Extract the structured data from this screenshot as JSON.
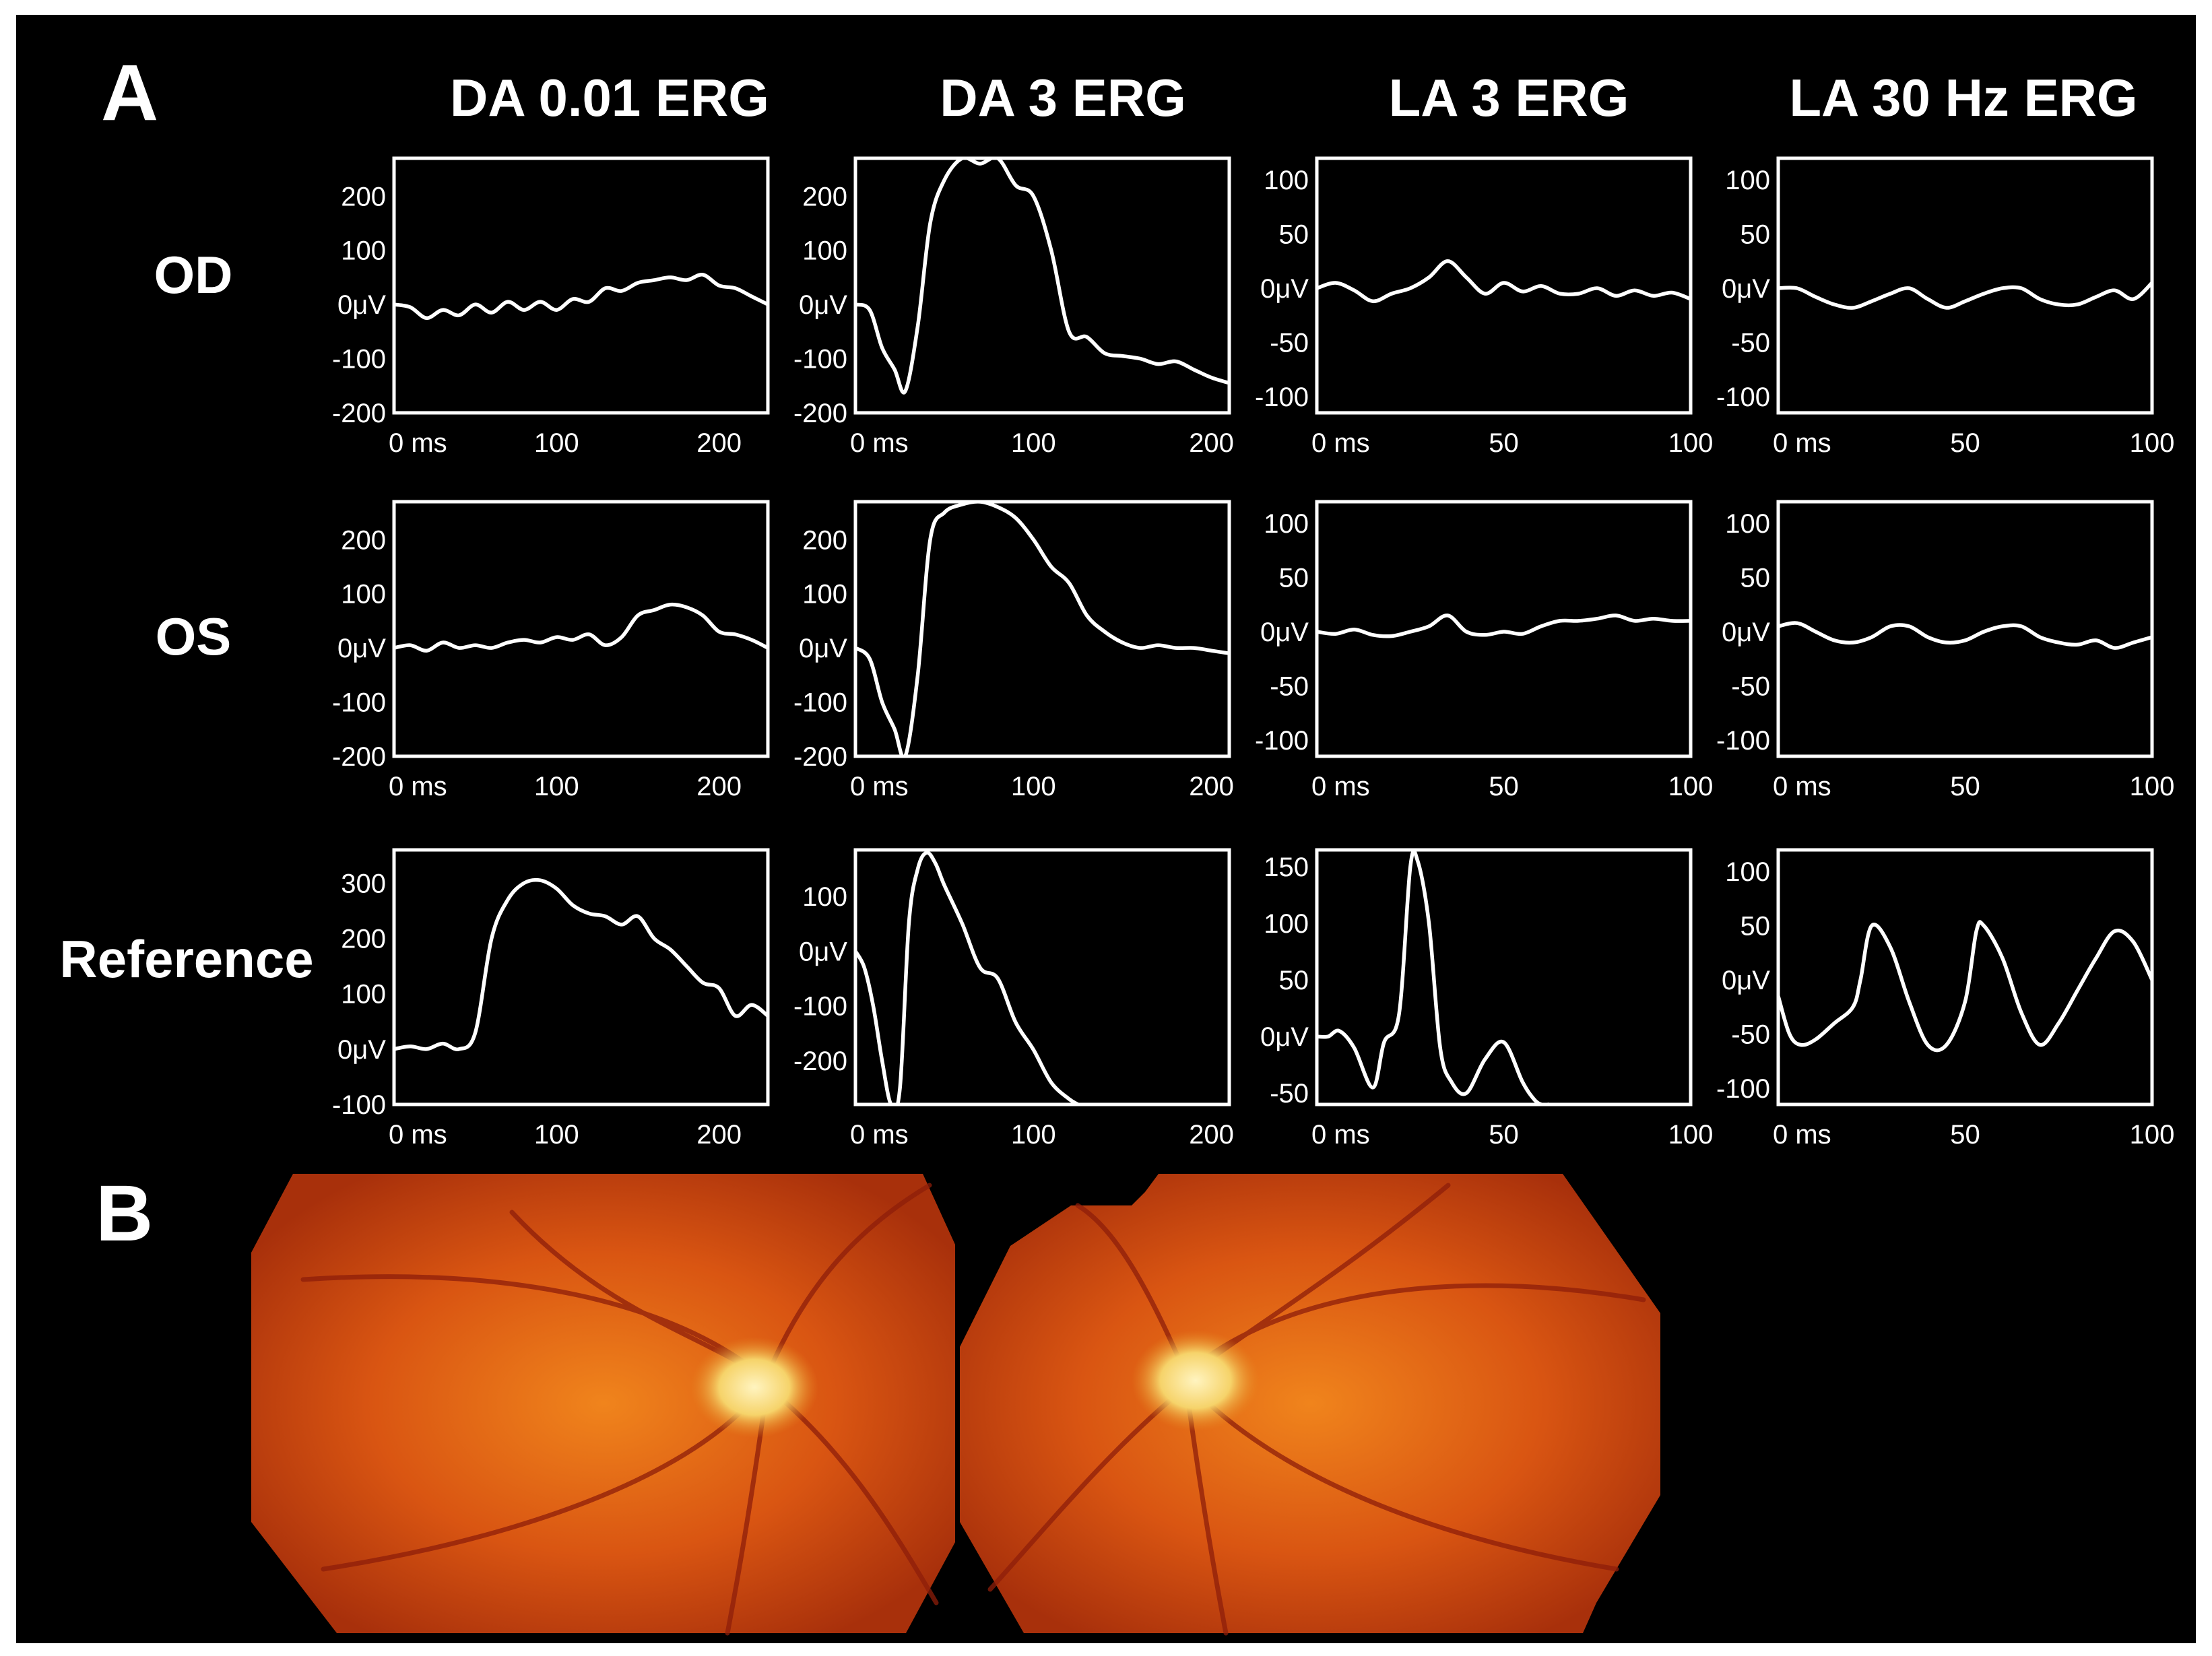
{
  "figure": {
    "panel_a_label": "A",
    "panel_b_label": "B",
    "column_titles": [
      "DA 0.01 ERG",
      "DA 3 ERG",
      "LA 3 ERG",
      "LA 30 Hz ERG"
    ],
    "row_labels": [
      "OD",
      "OS",
      "Reference"
    ],
    "colors": {
      "background": "#000000",
      "trace": "#ffffff",
      "fundus": "#d2460f"
    }
  },
  "chart_data": [
    {
      "type": "line",
      "row": "OD",
      "column": "DA 0.01 ERG",
      "xlim": [
        0,
        230
      ],
      "ylim": [
        -200,
        270
      ],
      "x_ticks": [
        "0 ms",
        "100",
        "200"
      ],
      "x_tick_values": [
        0,
        100,
        200
      ],
      "y_ticks": [
        "200",
        "100",
        "0μV",
        "-100",
        "-200"
      ],
      "y_tick_values": [
        200,
        100,
        0,
        -100,
        -200
      ],
      "series": [
        {
          "x": [
            0,
            10,
            20,
            30,
            40,
            50,
            60,
            70,
            80,
            90,
            100,
            110,
            120,
            130,
            140,
            150,
            160,
            170,
            180,
            190,
            200,
            210,
            220,
            230
          ],
          "y": [
            0,
            -5,
            -25,
            -10,
            -20,
            0,
            -15,
            5,
            -10,
            5,
            -10,
            10,
            5,
            30,
            25,
            40,
            45,
            50,
            45,
            55,
            35,
            30,
            15,
            0
          ]
        }
      ]
    },
    {
      "type": "line",
      "row": "OD",
      "column": "DA 3 ERG",
      "xlim": [
        0,
        210
      ],
      "ylim": [
        -200,
        270
      ],
      "x_ticks": [
        "0 ms",
        "100",
        "200"
      ],
      "x_tick_values": [
        0,
        100,
        200
      ],
      "y_ticks": [
        "200",
        "100",
        "0μV",
        "-100",
        "-200"
      ],
      "y_tick_values": [
        200,
        100,
        0,
        -100,
        -200
      ],
      "series": [
        {
          "x": [
            0,
            8,
            15,
            22,
            28,
            35,
            42,
            50,
            60,
            70,
            80,
            90,
            100,
            110,
            120,
            130,
            140,
            150,
            160,
            170,
            180,
            190,
            200,
            210
          ],
          "y": [
            0,
            -10,
            -80,
            -120,
            -160,
            -40,
            150,
            230,
            270,
            260,
            270,
            220,
            200,
            100,
            -50,
            -60,
            -90,
            -95,
            -100,
            -110,
            -105,
            -120,
            -135,
            -145
          ]
        }
      ]
    },
    {
      "type": "line",
      "row": "OD",
      "column": "LA 3 ERG",
      "xlim": [
        0,
        100
      ],
      "ylim": [
        -115,
        120
      ],
      "x_ticks": [
        "0 ms",
        "50",
        "100"
      ],
      "x_tick_values": [
        0,
        50,
        100
      ],
      "y_ticks": [
        "100",
        "50",
        "0μV",
        "-50",
        "-100"
      ],
      "y_tick_values": [
        100,
        50,
        0,
        -50,
        -100
      ],
      "series": [
        {
          "x": [
            0,
            5,
            10,
            15,
            20,
            25,
            30,
            35,
            40,
            45,
            50,
            55,
            60,
            65,
            70,
            75,
            80,
            85,
            90,
            95,
            100
          ],
          "y": [
            0,
            5,
            -2,
            -12,
            -5,
            0,
            10,
            25,
            10,
            -5,
            5,
            -3,
            2,
            -5,
            -5,
            0,
            -7,
            -2,
            -7,
            -4,
            -10
          ]
        }
      ]
    },
    {
      "type": "line",
      "row": "OD",
      "column": "LA 30 Hz ERG",
      "xlim": [
        0,
        100
      ],
      "ylim": [
        -115,
        120
      ],
      "x_ticks": [
        "0 ms",
        "50",
        "100"
      ],
      "x_tick_values": [
        0,
        50,
        100
      ],
      "y_ticks": [
        "100",
        "50",
        "0μV",
        "-50",
        "-100"
      ],
      "y_tick_values": [
        100,
        50,
        0,
        -50,
        -100
      ],
      "series": [
        {
          "x": [
            0,
            5,
            10,
            15,
            20,
            25,
            30,
            35,
            40,
            45,
            50,
            55,
            60,
            65,
            70,
            75,
            80,
            85,
            90,
            95,
            100
          ],
          "y": [
            0,
            0,
            -8,
            -15,
            -18,
            -12,
            -5,
            0,
            -10,
            -18,
            -12,
            -5,
            0,
            0,
            -10,
            -15,
            -15,
            -8,
            -2,
            -10,
            5
          ]
        }
      ]
    },
    {
      "type": "line",
      "row": "OS",
      "column": "DA 0.01 ERG",
      "xlim": [
        0,
        230
      ],
      "ylim": [
        -200,
        270
      ],
      "x_ticks": [
        "0 ms",
        "100",
        "200"
      ],
      "x_tick_values": [
        0,
        100,
        200
      ],
      "y_ticks": [
        "200",
        "100",
        "0μV",
        "-100",
        "-200"
      ],
      "y_tick_values": [
        200,
        100,
        0,
        -100,
        -200
      ],
      "series": [
        {
          "x": [
            0,
            10,
            20,
            30,
            40,
            50,
            60,
            70,
            80,
            90,
            100,
            110,
            120,
            130,
            140,
            150,
            160,
            170,
            180,
            190,
            200,
            210,
            220,
            230
          ],
          "y": [
            0,
            5,
            -5,
            10,
            0,
            5,
            0,
            10,
            15,
            10,
            20,
            15,
            25,
            5,
            20,
            60,
            70,
            80,
            75,
            60,
            30,
            25,
            15,
            0
          ]
        }
      ]
    },
    {
      "type": "line",
      "row": "OS",
      "column": "DA 3 ERG",
      "xlim": [
        0,
        210
      ],
      "ylim": [
        -200,
        270
      ],
      "x_ticks": [
        "0 ms",
        "100",
        "200"
      ],
      "x_tick_values": [
        0,
        100,
        200
      ],
      "y_ticks": [
        "200",
        "100",
        "0μV",
        "-100",
        "-200"
      ],
      "y_tick_values": [
        200,
        100,
        0,
        -100,
        -200
      ],
      "series": [
        {
          "x": [
            0,
            8,
            15,
            22,
            28,
            35,
            42,
            50,
            60,
            70,
            80,
            90,
            100,
            110,
            120,
            130,
            140,
            150,
            160,
            170,
            180,
            190,
            200,
            210
          ],
          "y": [
            0,
            -20,
            -100,
            -150,
            -200,
            -50,
            200,
            250,
            265,
            270,
            260,
            240,
            200,
            150,
            120,
            60,
            30,
            10,
            0,
            5,
            0,
            0,
            -5,
            -10
          ]
        }
      ]
    },
    {
      "type": "line",
      "row": "OS",
      "column": "LA 3 ERG",
      "xlim": [
        0,
        100
      ],
      "ylim": [
        -115,
        120
      ],
      "x_ticks": [
        "0 ms",
        "50",
        "100"
      ],
      "x_tick_values": [
        0,
        50,
        100
      ],
      "y_ticks": [
        "100",
        "50",
        "0μV",
        "-50",
        "-100"
      ],
      "y_tick_values": [
        100,
        50,
        0,
        -50,
        -100
      ],
      "series": [
        {
          "x": [
            0,
            5,
            10,
            15,
            20,
            25,
            30,
            35,
            40,
            45,
            50,
            55,
            60,
            65,
            70,
            75,
            80,
            85,
            90,
            95,
            100
          ],
          "y": [
            0,
            -2,
            2,
            -3,
            -4,
            0,
            5,
            15,
            0,
            -3,
            0,
            -2,
            5,
            10,
            10,
            12,
            15,
            10,
            12,
            10,
            10
          ]
        }
      ]
    },
    {
      "type": "line",
      "row": "OS",
      "column": "LA 30 Hz ERG",
      "xlim": [
        0,
        100
      ],
      "ylim": [
        -115,
        120
      ],
      "x_ticks": [
        "0 ms",
        "50",
        "100"
      ],
      "x_tick_values": [
        0,
        50,
        100
      ],
      "y_ticks": [
        "100",
        "50",
        "0μV",
        "-50",
        "-100"
      ],
      "y_tick_values": [
        100,
        50,
        0,
        -50,
        -100
      ],
      "series": [
        {
          "x": [
            0,
            5,
            10,
            15,
            20,
            25,
            30,
            35,
            40,
            45,
            50,
            55,
            60,
            65,
            70,
            75,
            80,
            85,
            90,
            95,
            100
          ],
          "y": [
            5,
            8,
            0,
            -8,
            -10,
            -5,
            5,
            5,
            -5,
            -10,
            -8,
            0,
            5,
            5,
            -5,
            -10,
            -12,
            -8,
            -15,
            -10,
            -5
          ]
        }
      ]
    },
    {
      "type": "line",
      "row": "Reference",
      "column": "DA 0.01 ERG",
      "xlim": [
        0,
        230
      ],
      "ylim": [
        -100,
        360
      ],
      "x_ticks": [
        "0 ms",
        "100",
        "200"
      ],
      "x_tick_values": [
        0,
        100,
        200
      ],
      "y_ticks": [
        "300",
        "200",
        "100",
        "0μV",
        "-100"
      ],
      "y_tick_values": [
        300,
        200,
        100,
        0,
        -100
      ],
      "series": [
        {
          "x": [
            0,
            10,
            20,
            30,
            40,
            50,
            60,
            70,
            80,
            90,
            100,
            110,
            120,
            130,
            140,
            150,
            160,
            170,
            180,
            190,
            200,
            210,
            220,
            230
          ],
          "y": [
            0,
            5,
            0,
            10,
            0,
            30,
            200,
            270,
            300,
            305,
            290,
            260,
            245,
            240,
            225,
            240,
            200,
            180,
            150,
            120,
            110,
            60,
            80,
            60
          ]
        }
      ]
    },
    {
      "type": "line",
      "row": "Reference",
      "column": "DA 3 ERG",
      "xlim": [
        0,
        210
      ],
      "ylim": [
        -280,
        185
      ],
      "x_ticks": [
        "0 ms",
        "100",
        "200"
      ],
      "x_tick_values": [
        0,
        100,
        200
      ],
      "y_ticks": [
        "100",
        "0μV",
        "-100",
        "-200"
      ],
      "y_tick_values": [
        100,
        0,
        -100,
        -200
      ],
      "series": [
        {
          "x": [
            0,
            5,
            10,
            15,
            20,
            25,
            30,
            35,
            40,
            45,
            50,
            60,
            70,
            80,
            90,
            100,
            110,
            120,
            125
          ],
          "y": [
            0,
            -30,
            -100,
            -200,
            -280,
            -250,
            50,
            150,
            180,
            160,
            120,
            50,
            -30,
            -50,
            -130,
            -180,
            -240,
            -270,
            -280
          ]
        }
      ]
    },
    {
      "type": "line",
      "row": "Reference",
      "column": "LA 3 ERG",
      "xlim": [
        0,
        100
      ],
      "ylim": [
        -60,
        165
      ],
      "x_ticks": [
        "0 ms",
        "50",
        "100"
      ],
      "x_tick_values": [
        0,
        50,
        100
      ],
      "y_ticks": [
        "150",
        "100",
        "50",
        "0μV",
        "-50"
      ],
      "y_tick_values": [
        150,
        100,
        50,
        0,
        -50
      ],
      "series": [
        {
          "x": [
            0,
            3,
            6,
            10,
            15,
            18,
            22,
            25,
            27,
            30,
            33,
            36,
            40,
            45,
            50,
            55,
            58,
            60,
            62
          ],
          "y": [
            0,
            0,
            5,
            -10,
            -45,
            -5,
            20,
            150,
            155,
            100,
            -10,
            -40,
            -50,
            -20,
            -5,
            -40,
            -55,
            -60,
            -60
          ]
        }
      ]
    },
    {
      "type": "line",
      "row": "Reference",
      "column": "LA 30 Hz ERG",
      "xlim": [
        0,
        100
      ],
      "ylim": [
        -115,
        120
      ],
      "x_ticks": [
        "0 ms",
        "50",
        "100"
      ],
      "x_tick_values": [
        0,
        50,
        100
      ],
      "y_ticks": [
        "100",
        "50",
        "0μV",
        "-50",
        "-100"
      ],
      "y_tick_values": [
        100,
        50,
        0,
        -50,
        -100
      ],
      "series": [
        {
          "x": [
            0,
            3,
            6,
            10,
            15,
            20,
            22,
            25,
            30,
            35,
            40,
            45,
            50,
            53,
            55,
            60,
            65,
            70,
            75,
            80,
            85,
            90,
            95,
            100
          ],
          "y": [
            -15,
            -50,
            -60,
            -55,
            -40,
            -25,
            0,
            50,
            30,
            -20,
            -60,
            -60,
            -20,
            45,
            50,
            20,
            -30,
            -60,
            -40,
            -10,
            20,
            45,
            35,
            0
          ]
        }
      ]
    }
  ]
}
